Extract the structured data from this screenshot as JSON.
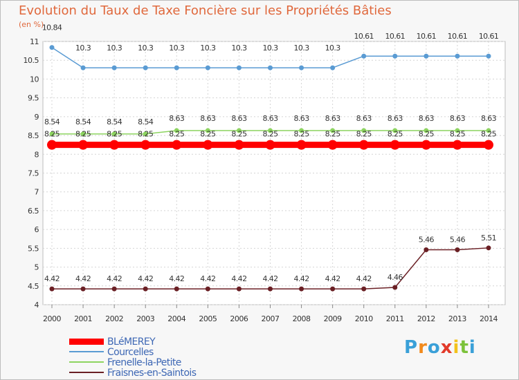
{
  "chart_data": {
    "type": "line",
    "title": "Evolution du Taux de Taxe Foncière sur les Propriétés Bâties",
    "subtitle": "(en %)",
    "x": [
      "2000",
      "2001",
      "2002",
      "2003",
      "2004",
      "2005",
      "2006",
      "2007",
      "2008",
      "2009",
      "2010",
      "2011",
      "2012",
      "2013",
      "2014"
    ],
    "ylim": [
      4,
      11
    ],
    "yticks": [
      "4",
      "4.5",
      "5",
      "5.5",
      "6",
      "6.5",
      "7",
      "7.5",
      "8",
      "8.5",
      "9",
      "9.5",
      "10",
      "10.5",
      "11"
    ],
    "series": [
      {
        "name": "BLéMEREY",
        "color": "#ff0000",
        "values": [
          8.25,
          8.25,
          8.25,
          8.25,
          8.25,
          8.25,
          8.25,
          8.25,
          8.25,
          8.25,
          8.25,
          8.25,
          8.25,
          8.25,
          8.25
        ],
        "labels": [
          "8.25",
          "8.25",
          "8.25",
          "8.25",
          "8.25",
          "8.25",
          "8.25",
          "8.25",
          "8.25",
          "8.25",
          "8.25",
          "8.25",
          "8.25",
          "8.25",
          "8.25"
        ]
      },
      {
        "name": "Courcelles",
        "color": "#5a9bd3",
        "values": [
          10.84,
          10.3,
          10.3,
          10.3,
          10.3,
          10.3,
          10.3,
          10.3,
          10.3,
          10.3,
          10.61,
          10.61,
          10.61,
          10.61,
          10.61
        ],
        "labels": [
          "10.84",
          "10.3",
          "10.3",
          "10.3",
          "10.3",
          "10.3",
          "10.3",
          "10.3",
          "10.3",
          "10.3",
          "10.61",
          "10.61",
          "10.61",
          "10.61",
          "10.61"
        ]
      },
      {
        "name": "Frenelle-la-Petite",
        "color": "#8cd45f",
        "values": [
          8.54,
          8.54,
          8.54,
          8.54,
          8.63,
          8.63,
          8.63,
          8.63,
          8.63,
          8.63,
          8.63,
          8.63,
          8.63,
          8.63,
          8.63
        ],
        "labels": [
          "8.54",
          "8.54",
          "8.54",
          "8.54",
          "8.63",
          "8.63",
          "8.63",
          "8.63",
          "8.63",
          "8.63",
          "8.63",
          "8.63",
          "8.63",
          "8.63",
          "8.63"
        ]
      },
      {
        "name": "Fraisnes-en-Saintois",
        "color": "#6a1f24",
        "values": [
          4.42,
          4.42,
          4.42,
          4.42,
          4.42,
          4.42,
          4.42,
          4.42,
          4.42,
          4.42,
          4.42,
          4.46,
          5.46,
          5.46,
          5.51
        ],
        "labels": [
          "4.42",
          "4.42",
          "4.42",
          "4.42",
          "4.42",
          "4.42",
          "4.42",
          "4.42",
          "4.42",
          "4.42",
          "4.42",
          "4.46",
          "5.46",
          "5.46",
          "5.51"
        ]
      }
    ]
  },
  "logo": {
    "letters": [
      "P",
      "r",
      "o",
      "x",
      "i",
      "t",
      "i"
    ],
    "colors": [
      "#3aa0d8",
      "#f28a1c",
      "#3aa0d8",
      "#e23a2a",
      "#f2c21c",
      "#7cc23a",
      "#3aa0d8"
    ]
  }
}
